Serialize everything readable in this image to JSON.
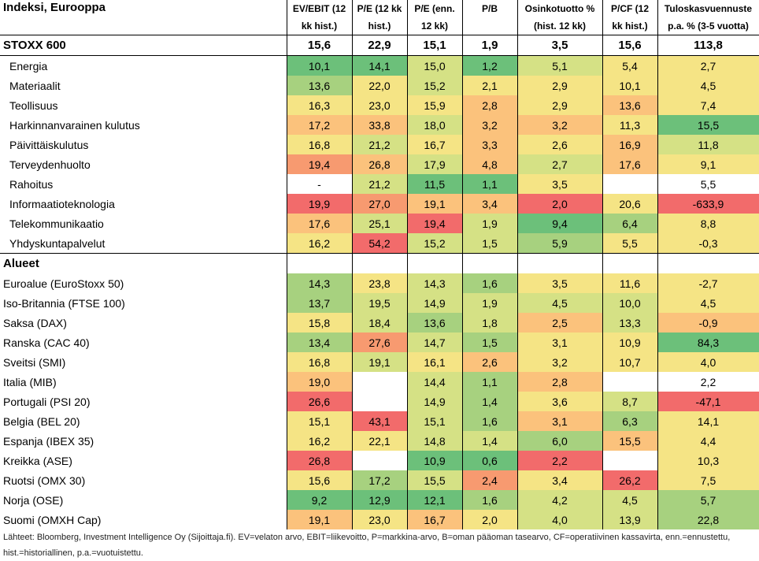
{
  "title": "Indeksi, Eurooppa",
  "headers": {
    "c1": [
      "EV/EBIT (12",
      "kk hist.)"
    ],
    "c2": [
      "P/E (12 kk",
      "hist.)"
    ],
    "c3": [
      "P/E (enn.",
      "12 kk)"
    ],
    "c4": [
      "P/B",
      ""
    ],
    "c5": [
      "Osinkotuotto %",
      "(hist. 12 kk)"
    ],
    "c6": [
      "P/CF (12",
      "kk hist.)"
    ],
    "c7": [
      "Tuloskasvuennuste",
      "p.a. % (3-5 vuotta)"
    ]
  },
  "total": {
    "label": "STOXX 600",
    "values": [
      "15,6",
      "22,9",
      "15,1",
      "1,9",
      "3,5",
      "15,6",
      "113,8"
    ]
  },
  "sectors": [
    {
      "label": "Energia",
      "values": [
        "10,1",
        "14,1",
        "15,0",
        "1,2",
        "5,1",
        "5,4",
        "2,7"
      ]
    },
    {
      "label": "Materiaalit",
      "values": [
        "13,6",
        "22,0",
        "15,2",
        "2,1",
        "2,9",
        "10,1",
        "4,5"
      ]
    },
    {
      "label": "Teollisuus",
      "values": [
        "16,3",
        "23,0",
        "15,9",
        "2,8",
        "2,9",
        "13,6",
        "7,4"
      ]
    },
    {
      "label": "Harkinnanvarainen kulutus",
      "values": [
        "17,2",
        "33,8",
        "18,0",
        "3,2",
        "3,2",
        "11,3",
        "15,5"
      ]
    },
    {
      "label": "Päivittäiskulutus",
      "values": [
        "16,8",
        "21,2",
        "16,7",
        "3,3",
        "2,6",
        "16,9",
        "11,8"
      ]
    },
    {
      "label": "Terveydenhuolto",
      "values": [
        "19,4",
        "26,8",
        "17,9",
        "4,8",
        "2,7",
        "17,6",
        "9,1"
      ]
    },
    {
      "label": "Rahoitus",
      "values": [
        "-",
        "21,2",
        "11,5",
        "1,1",
        "3,5",
        "",
        "5,5"
      ]
    },
    {
      "label": "Informaatioteknologia",
      "values": [
        "19,9",
        "27,0",
        "19,1",
        "3,4",
        "2,0",
        "20,6",
        "-633,9"
      ]
    },
    {
      "label": "Telekommunikaatio",
      "values": [
        "17,6",
        "25,1",
        "19,4",
        "1,9",
        "9,4",
        "6,4",
        "8,8"
      ]
    },
    {
      "label": "Yhdyskuntapalvelut",
      "values": [
        "16,2",
        "54,2",
        "15,2",
        "1,5",
        "5,9",
        "5,5",
        "-0,3"
      ]
    }
  ],
  "regions_label": "Alueet",
  "regions": [
    {
      "label": "Euroalue (EuroStoxx 50)",
      "values": [
        "14,3",
        "23,8",
        "14,3",
        "1,6",
        "3,5",
        "11,6",
        "-2,7"
      ]
    },
    {
      "label": "Iso-Britannia (FTSE 100)",
      "values": [
        "13,7",
        "19,5",
        "14,9",
        "1,9",
        "4,5",
        "10,0",
        "4,5"
      ]
    },
    {
      "label": "Saksa (DAX)",
      "values": [
        "15,8",
        "18,4",
        "13,6",
        "1,8",
        "2,5",
        "13,3",
        "-0,9"
      ]
    },
    {
      "label": "Ranska (CAC 40)",
      "values": [
        "13,4",
        "27,6",
        "14,7",
        "1,5",
        "3,1",
        "10,9",
        "84,3"
      ]
    },
    {
      "label": "Sveitsi (SMI)",
      "values": [
        "16,8",
        "19,1",
        "16,1",
        "2,6",
        "3,2",
        "10,7",
        "4,0"
      ]
    },
    {
      "label": "Italia (MIB)",
      "values": [
        "19,0",
        "",
        "14,4",
        "1,1",
        "2,8",
        "",
        "2,2"
      ]
    },
    {
      "label": "Portugali (PSI 20)",
      "values": [
        "26,6",
        "",
        "14,9",
        "1,4",
        "3,6",
        "8,7",
        "-47,1"
      ]
    },
    {
      "label": "Belgia (BEL 20)",
      "values": [
        "15,1",
        "43,1",
        "15,1",
        "1,6",
        "3,1",
        "6,3",
        "14,1"
      ]
    },
    {
      "label": "Espanja (IBEX 35)",
      "values": [
        "16,2",
        "22,1",
        "14,8",
        "1,4",
        "6,0",
        "15,5",
        "4,4"
      ]
    },
    {
      "label": "Kreikka (ASE)",
      "values": [
        "26,8",
        "",
        "10,9",
        "0,6",
        "2,2",
        "",
        "10,3"
      ]
    },
    {
      "label": "Ruotsi (OMX 30)",
      "values": [
        "15,6",
        "17,2",
        "15,5",
        "2,4",
        "3,4",
        "26,2",
        "7,5"
      ]
    },
    {
      "label": "Norja (OSE)",
      "values": [
        "9,2",
        "12,9",
        "12,1",
        "1,6",
        "4,2",
        "4,5",
        "5,7"
      ]
    },
    {
      "label": "Suomi (OMXH Cap)",
      "values": [
        "19,1",
        "23,0",
        "16,7",
        "2,0",
        "4,0",
        "13,9",
        "22,8"
      ]
    }
  ],
  "colors": {
    "G": "#6cc07a",
    "g": "#a7d17f",
    "l": "#d5e185",
    "y": "#f5e485",
    "o": "#fbc27c",
    "p": "#f79a70",
    "r": "#f26b6b",
    "w": "#ffffff"
  },
  "cell_colors": {
    "sectors": [
      "GGlGlyy",
      "gylyyyy",
      "yyyoyoy",
      "oolooyG",
      "ylyoyol",
      "pololoy",
      "wlGGyww",
      "rpooryr",
      "olrlGgy",
      "yrllgyy"
    ],
    "regions": [
      "gylgyyy",
      "gllllly",
      "ylglolo",
      "gplgyyG",
      "ylyoyyy",
      "owlgoww",
      "rwlgylr",
      "yrlgogy",
      "yyllgoy",
      "rwGGrwy",
      "yglpyry",
      "GGGgllg",
      "oyoyllg"
    ]
  },
  "footnote": "Lähteet: Bloomberg, Investment Intelligence Oy (Sijoittaja.fi). EV=velaton arvo, EBIT=liikevoitto, P=markkina-arvo, B=oman pääoman tasearvo, CF=operatiivinen kassavirta, enn.=ennustettu, hist.=historiallinen, p.a.=vuotuistettu."
}
